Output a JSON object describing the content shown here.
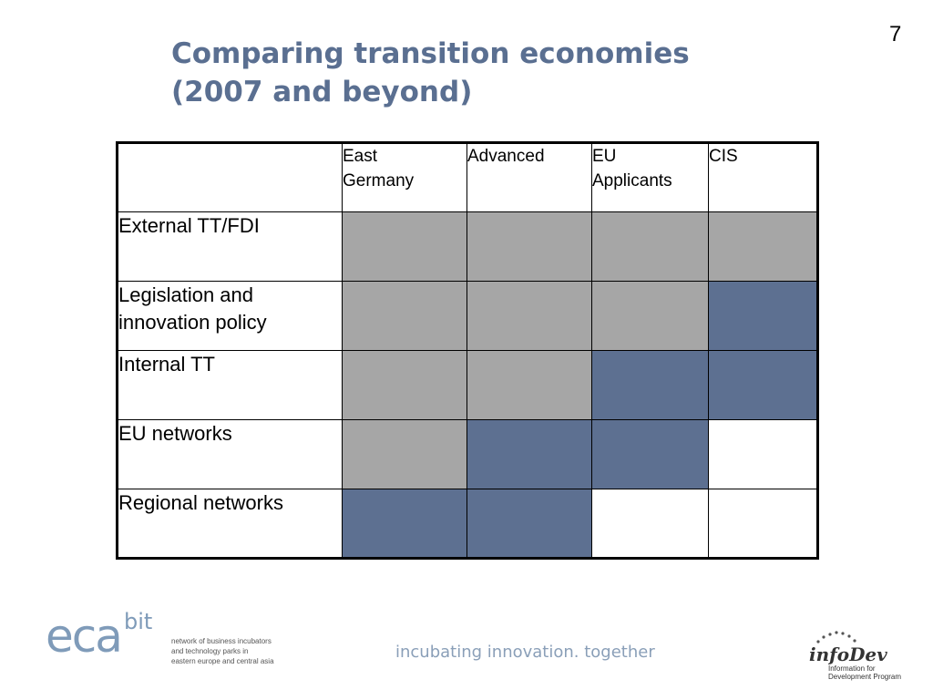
{
  "slide": {
    "page_number": "7",
    "title_line1": "Comparing transition economies",
    "title_line2": "(2007 and beyond)"
  },
  "table": {
    "columns": [
      {
        "line1": "East",
        "line2": "Germany"
      },
      {
        "line1": "Advanced",
        "line2": ""
      },
      {
        "line1": "EU",
        "line2": "Applicants"
      },
      {
        "line1": "CIS",
        "line2": ""
      }
    ],
    "rows": [
      {
        "label_line1": "External TT/FDI",
        "label_line2": "",
        "cells": [
          "grey",
          "grey",
          "grey",
          "grey"
        ]
      },
      {
        "label_line1": "Legislation and",
        "label_line2": "innovation policy",
        "cells": [
          "grey",
          "grey",
          "grey",
          "blue"
        ]
      },
      {
        "label_line1": "Internal TT",
        "label_line2": "",
        "cells": [
          "grey",
          "grey",
          "blue",
          "blue"
        ]
      },
      {
        "label_line1": "EU networks",
        "label_line2": "",
        "cells": [
          "grey",
          "blue",
          "blue",
          "white"
        ]
      },
      {
        "label_line1": "Regional networks",
        "label_line2": "",
        "cells": [
          "blue",
          "blue",
          "white",
          "white"
        ]
      }
    ],
    "colors": {
      "grey": "#a6a6a6",
      "blue": "#5d7091",
      "white": "#ffffff"
    }
  },
  "footer": {
    "eca_logo": "eca",
    "eca_logo_super": "bit",
    "eca_tagline_line1": "network of business incubators",
    "eca_tagline_line2": "and technology parks in",
    "eca_tagline_line3": "eastern europe and central asia",
    "slogan": "incubating innovation. together",
    "infodev_logo": "infoDev",
    "infodev_sub_line1": "Information for",
    "infodev_sub_line2": "Development Program"
  }
}
